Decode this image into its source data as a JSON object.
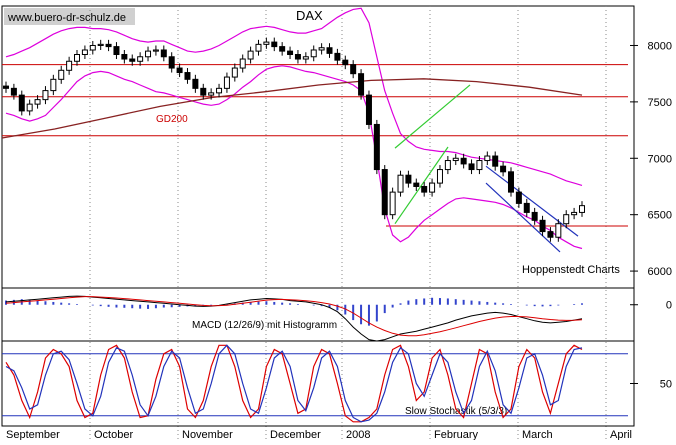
{
  "watermark": "www.buero-dr-schulz.de",
  "title": "DAX",
  "source_label": "Hoppenstedt Charts",
  "chart_data": [
    {
      "type": "candlestick",
      "title": "DAX",
      "ylim": [
        5850,
        8350
      ],
      "y_ticks": [
        "8000",
        "7500",
        "7000",
        "6500",
        "6000"
      ],
      "y_tick_values": [
        8000,
        7500,
        7000,
        6500,
        6000
      ],
      "x_labels": [
        "September",
        "October",
        "November",
        "December",
        "2008",
        "February",
        "March",
        "April"
      ],
      "horizontal_lines": [
        7830,
        7545,
        7200,
        6400
      ],
      "moving_average": {
        "name": "GD200",
        "values": [
          7180,
          7260,
          7360,
          7460,
          7540,
          7590,
          7650,
          7690,
          7705,
          7680,
          7630,
          7560
        ]
      },
      "close": [
        7620,
        7560,
        7420,
        7480,
        7520,
        7600,
        7700,
        7780,
        7860,
        7920,
        7960,
        8000,
        8010,
        7990,
        7920,
        7880,
        7860,
        7900,
        7950,
        7960,
        7900,
        7800,
        7760,
        7700,
        7620,
        7560,
        7580,
        7620,
        7720,
        7800,
        7880,
        7950,
        8010,
        8030,
        7990,
        7950,
        7920,
        7880,
        7900,
        7960,
        7980,
        7930,
        7870,
        7830,
        7750,
        7560,
        7300,
        6900,
        6500,
        6700,
        6850,
        6780,
        6750,
        6700,
        6780,
        6900,
        6980,
        7000,
        6950,
        6900,
        6980,
        7020,
        6930,
        6880,
        6700,
        6600,
        6520,
        6450,
        6350,
        6300,
        6420,
        6500,
        6520,
        6580
      ],
      "upper_band": [
        7900,
        7920,
        7950,
        7980,
        8020,
        8060,
        8100,
        8130,
        8150,
        8160,
        8160,
        8150,
        8150,
        8140,
        8120,
        8090,
        8060,
        8040,
        8030,
        8040,
        8040,
        8010,
        7980,
        7950,
        7940,
        7950,
        7970,
        8000,
        8040,
        8080,
        8120,
        8150,
        8160,
        8170,
        8160,
        8140,
        8120,
        8110,
        8110,
        8130,
        8150,
        8200,
        8250,
        8290,
        8320,
        8330,
        8200,
        7900,
        7600,
        7400,
        7220,
        7150,
        7100,
        7080,
        7070,
        7060,
        7060,
        7050,
        7030,
        7010,
        7000,
        6990,
        6980,
        6970,
        6960,
        6940,
        6920,
        6900,
        6880,
        6860,
        6830,
        6800,
        6780,
        6760
      ],
      "lower_band": [
        7400,
        7380,
        7350,
        7330,
        7350,
        7380,
        7450,
        7520,
        7600,
        7680,
        7730,
        7760,
        7770,
        7760,
        7730,
        7700,
        7680,
        7650,
        7620,
        7590,
        7580,
        7560,
        7540,
        7520,
        7500,
        7480,
        7470,
        7480,
        7520,
        7570,
        7630,
        7680,
        7740,
        7790,
        7810,
        7820,
        7810,
        7790,
        7770,
        7760,
        7740,
        7720,
        7700,
        7680,
        7650,
        7600,
        7400,
        7000,
        6550,
        6320,
        6260,
        6300,
        6380,
        6450,
        6500,
        6550,
        6600,
        6640,
        6650,
        6640,
        6630,
        6620,
        6610,
        6590,
        6560,
        6520,
        6480,
        6450,
        6400,
        6360,
        6300,
        6260,
        6220,
        6200
      ],
      "trend_channel_up": [
        [
          6420,
          7090
        ],
        [
          7100,
          7650
        ]
      ],
      "trend_channel_down": [
        [
          6930,
          6310
        ],
        [
          6780,
          6170
        ]
      ]
    },
    {
      "type": "bar",
      "title": "MACD (12/26/9) mit Histogramm",
      "ylim": [
        -260,
        120
      ],
      "y_ticks": [
        "0"
      ],
      "y_tick_values": [
        0
      ],
      "histogram": [
        30,
        35,
        40,
        38,
        30,
        25,
        20,
        15,
        10,
        5,
        0,
        -5,
        -10,
        -15,
        -20,
        -22,
        -25,
        -28,
        -30,
        -25,
        -20,
        -18,
        -15,
        -12,
        -10,
        -8,
        -5,
        0,
        5,
        10,
        15,
        20,
        22,
        25,
        20,
        15,
        10,
        5,
        0,
        -5,
        -10,
        -20,
        -40,
        -70,
        -110,
        -140,
        -150,
        -120,
        -60,
        -20,
        10,
        30,
        40,
        45,
        50,
        48,
        45,
        40,
        35,
        30,
        25,
        20,
        15,
        10,
        5,
        0,
        -5,
        -10,
        -12,
        -10,
        -5,
        0,
        5,
        10
      ],
      "macd": [
        20,
        25,
        30,
        35,
        40,
        45,
        50,
        55,
        60,
        62,
        60,
        55,
        50,
        45,
        40,
        35,
        30,
        25,
        20,
        15,
        10,
        5,
        0,
        -5,
        -10,
        -12,
        -10,
        -5,
        5,
        15,
        25,
        35,
        40,
        45,
        42,
        38,
        30,
        25,
        20,
        10,
        0,
        -20,
        -50,
        -100,
        -160,
        -210,
        -250,
        -260,
        -250,
        -230,
        -210,
        -200,
        -190,
        -175,
        -160,
        -145,
        -130,
        -110,
        -95,
        -80,
        -70,
        -60,
        -55,
        -60,
        -70,
        -85,
        -100,
        -115,
        -125,
        -130,
        -125,
        -120,
        -110,
        -100
      ],
      "signal": [
        10,
        15,
        20,
        25,
        30,
        35,
        40,
        45,
        50,
        55,
        58,
        58,
        55,
        52,
        48,
        44,
        40,
        35,
        30,
        25,
        20,
        15,
        10,
        5,
        0,
        -5,
        -7,
        -6,
        -3,
        3,
        10,
        18,
        26,
        33,
        37,
        38,
        36,
        33,
        29,
        23,
        15,
        5,
        -10,
        -30,
        -60,
        -95,
        -130,
        -160,
        -185,
        -205,
        -218,
        -222,
        -222,
        -215,
        -205,
        -193,
        -180,
        -165,
        -150,
        -135,
        -120,
        -107,
        -96,
        -88,
        -84,
        -84,
        -87,
        -93,
        -100,
        -106,
        -110,
        -112,
        -111,
        -108
      ]
    },
    {
      "type": "line",
      "title": "Slow Stochastik (5/3/3)",
      "ylim": [
        0,
        100
      ],
      "y_ticks": [
        "50"
      ],
      "y_tick_values": [
        50
      ],
      "reference_lines": [
        85,
        12
      ],
      "series": [
        {
          "values": [
            75,
            60,
            30,
            10,
            40,
            80,
            90,
            85,
            70,
            30,
            10,
            15,
            60,
            90,
            95,
            80,
            40,
            10,
            12,
            55,
            85,
            90,
            70,
            20,
            10,
            30,
            70,
            95,
            95,
            70,
            30,
            10,
            20,
            70,
            90,
            85,
            50,
            15,
            20,
            70,
            90,
            85,
            50,
            12,
            5,
            5,
            10,
            20,
            60,
            90,
            95,
            70,
            30,
            40,
            80,
            90,
            60,
            20,
            10,
            50,
            90,
            85,
            40,
            10,
            20,
            70,
            90,
            80,
            40,
            15,
            50,
            85,
            95,
            90
          ]
        },
        {
          "values": [
            70,
            65,
            45,
            20,
            25,
            60,
            85,
            88,
            78,
            50,
            20,
            12,
            35,
            75,
            92,
            88,
            60,
            25,
            12,
            35,
            70,
            88,
            80,
            45,
            15,
            20,
            50,
            85,
            95,
            85,
            50,
            20,
            15,
            45,
            80,
            88,
            70,
            30,
            18,
            45,
            80,
            88,
            70,
            30,
            10,
            5,
            7,
            15,
            40,
            75,
            92,
            85,
            50,
            35,
            60,
            85,
            75,
            40,
            15,
            30,
            70,
            88,
            65,
            25,
            15,
            45,
            80,
            85,
            60,
            25,
            30,
            70,
            90,
            92
          ]
        }
      ]
    }
  ]
}
